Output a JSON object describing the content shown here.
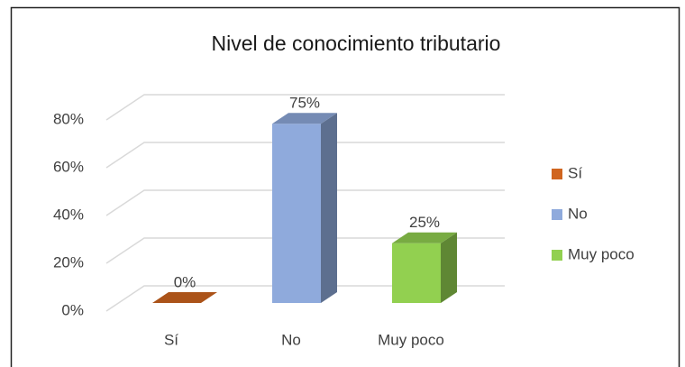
{
  "chart_data": {
    "type": "bar3d",
    "title": "Nivel de conocimiento tributario",
    "categories": [
      "Sí",
      "No",
      "Muy poco"
    ],
    "values": [
      0,
      75,
      25
    ],
    "value_labels": [
      "0%",
      "75%",
      "25%"
    ],
    "colors": [
      "#d0651f",
      "#8faadc",
      "#92d050"
    ],
    "ylim": [
      0,
      80
    ],
    "yticks": [
      {
        "value": 0,
        "label": "0%"
      },
      {
        "value": 20,
        "label": "20%"
      },
      {
        "value": 40,
        "label": "40%"
      },
      {
        "value": 60,
        "label": "60%"
      },
      {
        "value": 80,
        "label": "80%"
      }
    ],
    "grid": true,
    "legend": "right"
  }
}
